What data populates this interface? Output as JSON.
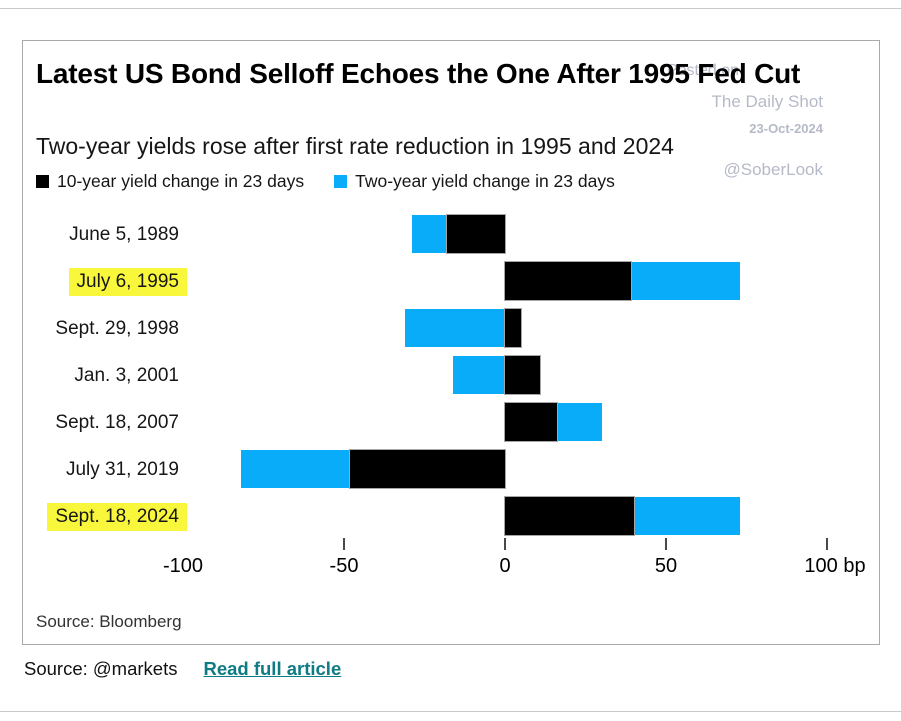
{
  "watermark": {
    "line1": "Posted on",
    "line2": "The Daily Shot",
    "line3": "23-Oct-2024",
    "line4": "@SoberLook"
  },
  "footer": {
    "source_label": "Source: @markets",
    "link_label": "Read full article"
  },
  "chart_data": {
    "type": "bar",
    "orientation": "horizontal",
    "title": "Latest US Bond Selloff Echoes the One After 1995 Fed Cut",
    "subtitle": "Two-year yields rose after first rate reduction in 1995 and 2024",
    "categories": [
      "June 5, 1989",
      "July 6, 1995",
      "Sept. 29, 1998",
      "Jan. 3, 2001",
      "Sept. 18, 2007",
      "July 31, 2019",
      "Sept. 18, 2024"
    ],
    "highlighted_categories": [
      "July 6, 1995",
      "Sept. 18, 2024"
    ],
    "series": [
      {
        "name": "10-year yield change in 23 days",
        "color": "#000000",
        "values": [
          -18,
          39,
          5,
          11,
          16,
          -48,
          40
        ]
      },
      {
        "name": "Two-year yield change in 23 days",
        "color": "#09ACF8",
        "values": [
          -29,
          73,
          -31,
          -16,
          30,
          -82,
          73
        ]
      }
    ],
    "bars_overlaid": true,
    "xlim": [
      -100,
      100
    ],
    "x_ticks": [
      -100,
      -50,
      0,
      50,
      100
    ],
    "ticks_drawn": [
      -50,
      0,
      50,
      100
    ],
    "x_tick_labels": [
      "-100",
      "-50",
      "0",
      "50",
      "100 bp"
    ],
    "x_unit": "bp",
    "highlight_color": "#F8F73C",
    "source": "Source: Bloomberg"
  }
}
